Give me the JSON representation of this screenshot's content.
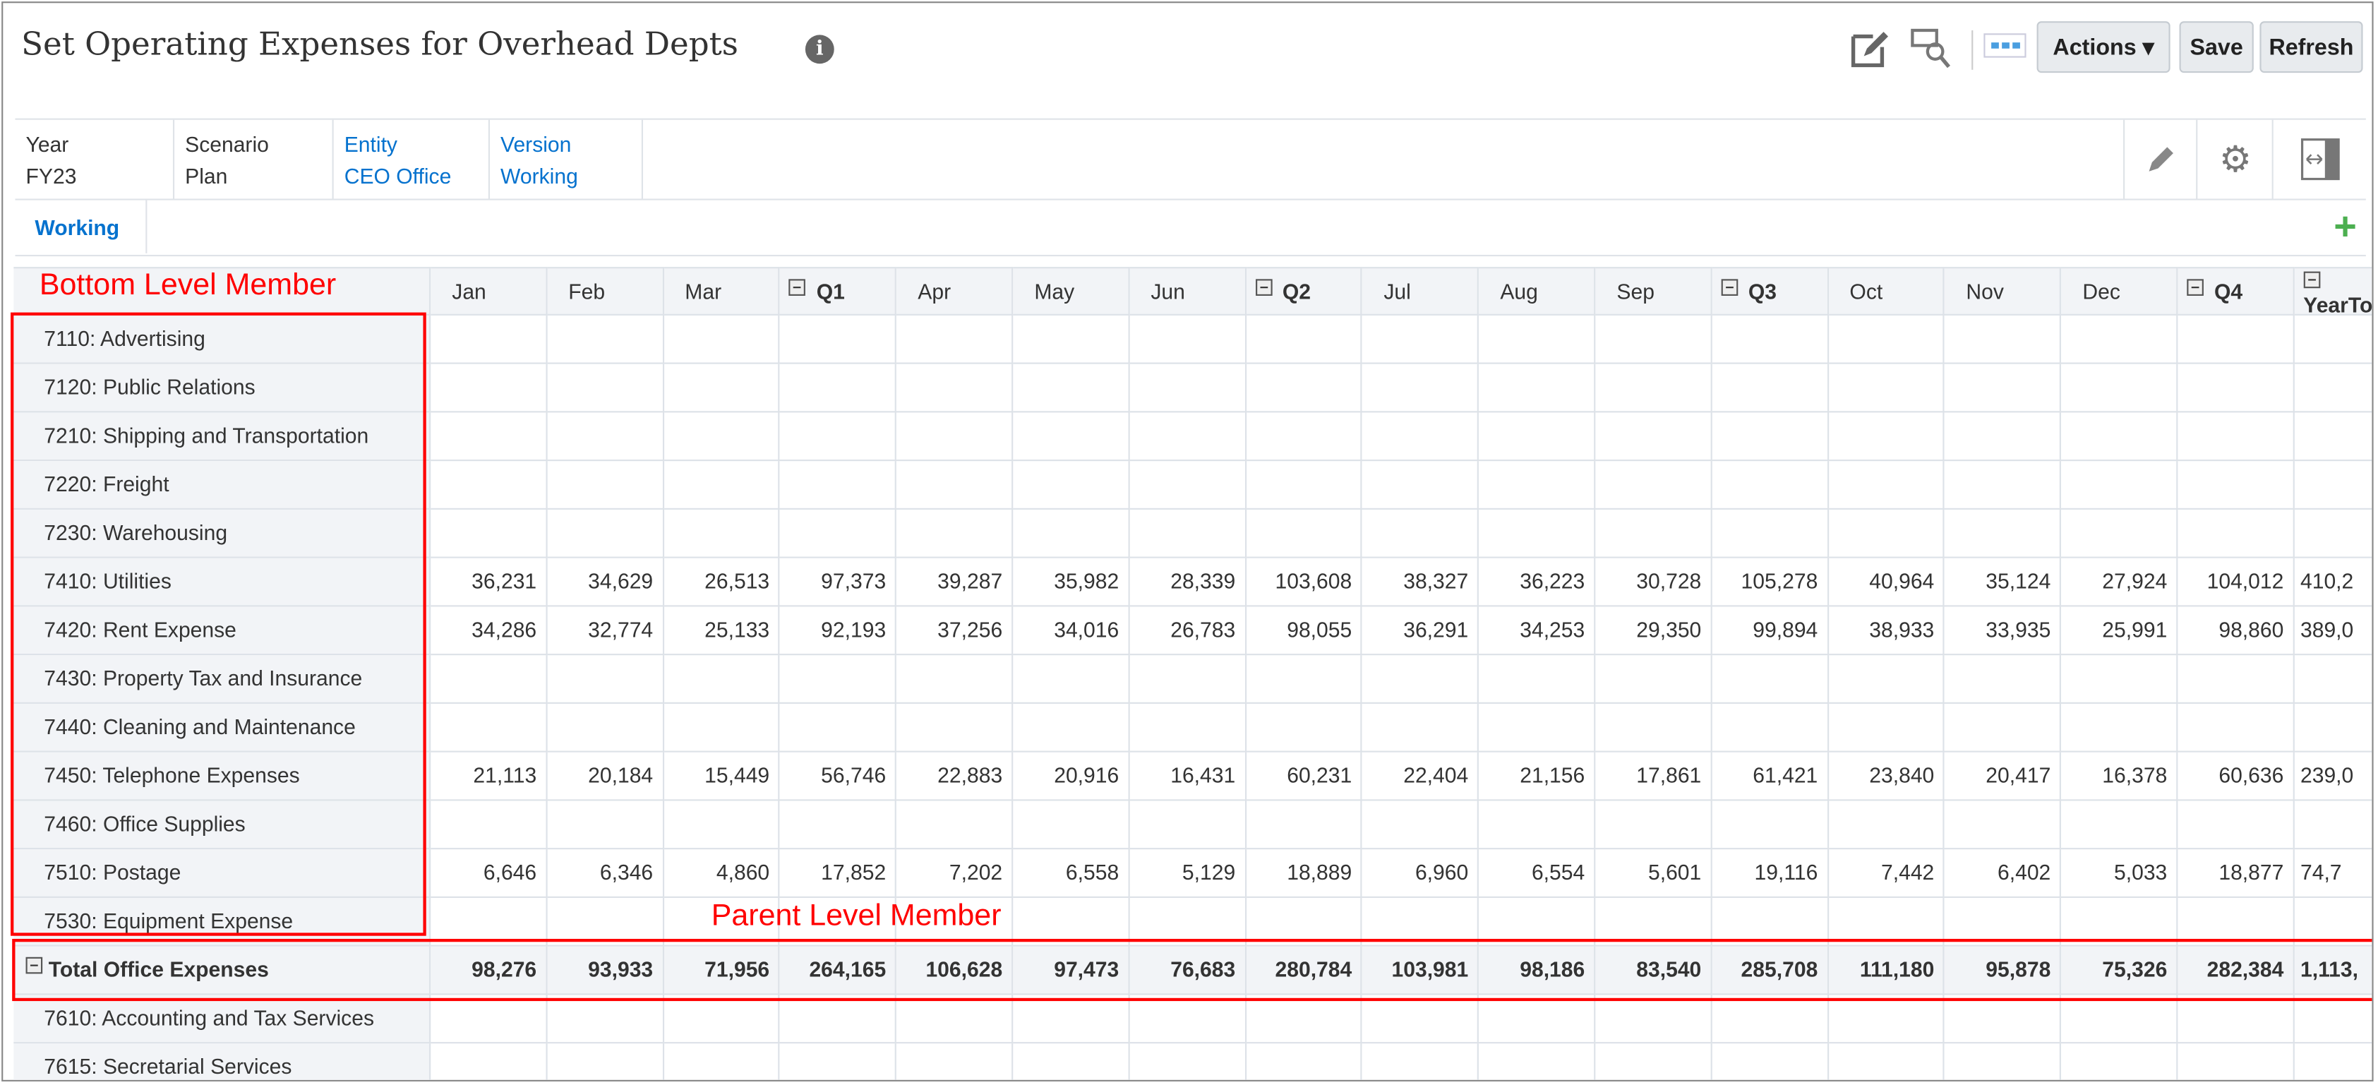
{
  "header": {
    "title": "Set Operating Expenses for Overhead Depts",
    "info_icon": "info-icon",
    "toolbar": {
      "actions_label": "Actions",
      "save_label": "Save",
      "refresh_label": "Refresh"
    }
  },
  "pov": [
    {
      "label": "Year",
      "value": "FY23",
      "link": false
    },
    {
      "label": "Scenario",
      "value": "Plan",
      "link": false
    },
    {
      "label": "Entity",
      "value": "CEO Office",
      "link": true
    },
    {
      "label": "Version",
      "value": "Working",
      "link": true
    }
  ],
  "tabs": [
    {
      "label": "Working",
      "active": true
    }
  ],
  "colors": {
    "link": "#0572ce",
    "annotation": "#ff0000",
    "add": "#4caf50"
  },
  "annotations": {
    "bottom_level": "Bottom Level Member",
    "parent_level": "Parent Level Member"
  },
  "grid": {
    "columns": [
      {
        "label": "Jan"
      },
      {
        "label": "Feb"
      },
      {
        "label": "Mar"
      },
      {
        "label": "Q1",
        "collapsible": true
      },
      {
        "label": "Apr"
      },
      {
        "label": "May"
      },
      {
        "label": "Jun"
      },
      {
        "label": "Q2",
        "collapsible": true
      },
      {
        "label": "Jul"
      },
      {
        "label": "Aug"
      },
      {
        "label": "Sep"
      },
      {
        "label": "Q3",
        "collapsible": true
      },
      {
        "label": "Oct"
      },
      {
        "label": "Nov"
      },
      {
        "label": "Dec"
      },
      {
        "label": "Q4",
        "collapsible": true
      },
      {
        "label": "YearTo",
        "collapsible": true
      }
    ],
    "rows": [
      {
        "label": "7110: Advertising",
        "values": []
      },
      {
        "label": "7120: Public Relations",
        "values": []
      },
      {
        "label": "7210: Shipping and Transportation",
        "values": []
      },
      {
        "label": "7220: Freight",
        "values": []
      },
      {
        "label": "7230: Warehousing",
        "values": []
      },
      {
        "label": "7410: Utilities",
        "values": [
          "36,231",
          "34,629",
          "26,513",
          "97,373",
          "39,287",
          "35,982",
          "28,339",
          "103,608",
          "38,327",
          "36,223",
          "30,728",
          "105,278",
          "40,964",
          "35,124",
          "27,924",
          "104,012",
          "410,2"
        ]
      },
      {
        "label": "7420: Rent Expense",
        "values": [
          "34,286",
          "32,774",
          "25,133",
          "92,193",
          "37,256",
          "34,016",
          "26,783",
          "98,055",
          "36,291",
          "34,253",
          "29,350",
          "99,894",
          "38,933",
          "33,935",
          "25,991",
          "98,860",
          "389,0"
        ]
      },
      {
        "label": "7430: Property Tax and Insurance",
        "values": []
      },
      {
        "label": "7440: Cleaning and Maintenance",
        "values": []
      },
      {
        "label": "7450: Telephone Expenses",
        "values": [
          "21,113",
          "20,184",
          "15,449",
          "56,746",
          "22,883",
          "20,916",
          "16,431",
          "60,231",
          "22,404",
          "21,156",
          "17,861",
          "61,421",
          "23,840",
          "20,417",
          "16,378",
          "60,636",
          "239,0"
        ]
      },
      {
        "label": "7460: Office Supplies",
        "values": []
      },
      {
        "label": "7510: Postage",
        "values": [
          "6,646",
          "6,346",
          "4,860",
          "17,852",
          "7,202",
          "6,558",
          "5,129",
          "18,889",
          "6,960",
          "6,554",
          "5,601",
          "19,116",
          "7,442",
          "6,402",
          "5,033",
          "18,877",
          "74,7"
        ]
      },
      {
        "label": "7530: Equipment Expense",
        "values": []
      },
      {
        "label": "Total Office Expenses",
        "total": true,
        "values": [
          "98,276",
          "93,933",
          "71,956",
          "264,165",
          "106,628",
          "97,473",
          "76,683",
          "280,784",
          "103,981",
          "98,186",
          "83,540",
          "285,708",
          "111,180",
          "95,878",
          "75,326",
          "282,384",
          "1,113,"
        ]
      },
      {
        "label": "7610: Accounting and Tax Services",
        "values": []
      },
      {
        "label": "7615: Secretarial Services",
        "values": []
      }
    ]
  }
}
